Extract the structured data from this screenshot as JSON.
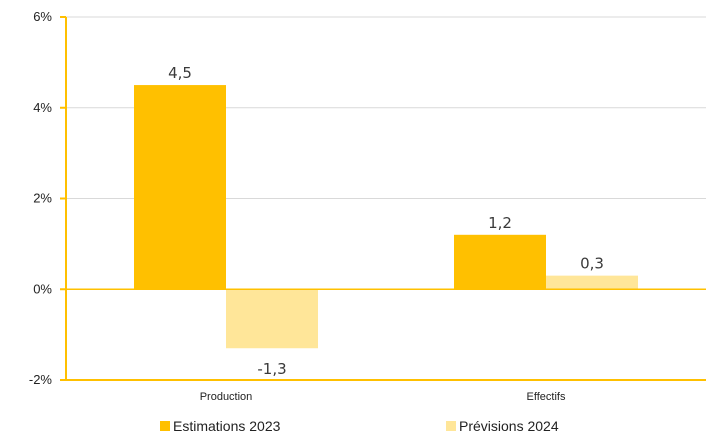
{
  "chart_data": {
    "type": "bar",
    "categories": [
      "Production",
      "Effectifs"
    ],
    "series": [
      {
        "name": "Estimations 2023",
        "values": [
          4.5,
          1.2
        ],
        "labels": [
          "4,5",
          "1,2"
        ],
        "color": "#FFC000"
      },
      {
        "name": "Prévisions 2024",
        "values": [
          -1.3,
          0.3
        ],
        "labels": [
          "-1,3",
          "0,3"
        ],
        "color": "#FFE699"
      }
    ],
    "ylim": [
      -2,
      6
    ],
    "yticks": [
      -2,
      0,
      2,
      4,
      6
    ],
    "ytick_labels": [
      "-2%",
      "0%",
      "2%",
      "4%",
      "6%"
    ],
    "axis_color": "#FFC000",
    "grid": true,
    "grid_color": "#D9D9D9",
    "legend_position": "bottom"
  }
}
